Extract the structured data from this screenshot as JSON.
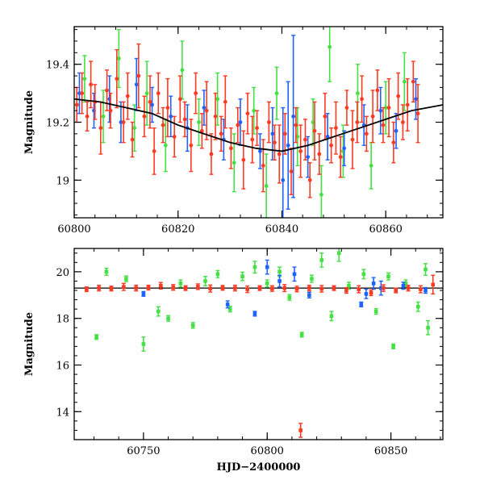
{
  "chart_data": [
    {
      "type": "scatter",
      "panel": "top",
      "title": "",
      "xlabel": "",
      "ylabel": "Magnitude",
      "xlim": [
        60800,
        60871
      ],
      "ylim": [
        19.53,
        18.87
      ],
      "y_inverted": true,
      "x_ticks": [
        60800,
        60820,
        60840,
        60860
      ],
      "x_tick_labels": [
        "60800",
        "60820",
        "60840",
        "60860"
      ],
      "y_ticks": [
        19.0,
        19.2,
        19.4
      ],
      "y_tick_labels": [
        "19",
        "19.2",
        "19.4"
      ],
      "model_curve": {
        "color": "#000000",
        "x": [
          60800,
          60805,
          60810,
          60815,
          60820,
          60825,
          60830,
          60835,
          60840,
          60845,
          60850,
          60855,
          60860,
          60865,
          60871
        ],
        "y": [
          19.28,
          19.27,
          19.25,
          19.23,
          19.19,
          19.16,
          19.13,
          19.11,
          19.1,
          19.12,
          19.15,
          19.18,
          19.21,
          19.24,
          19.26
        ]
      },
      "series": [
        {
          "color": "#ff3a22",
          "x": [
            60800.5,
            60801.5,
            60802.5,
            60803.2,
            60804.0,
            60805.1,
            60806.3,
            60807.0,
            60808.2,
            60809.5,
            60810.3,
            60811.2,
            60812.4,
            60813.5,
            60814.6,
            60815.4,
            60816.2,
            60817.1,
            60818.0,
            60819.3,
            60820.4,
            60821.3,
            60822.5,
            60823.4,
            60824.6,
            60825.5,
            60826.4,
            60827.2,
            60828.3,
            60829.1,
            60830.2,
            60831.5,
            60832.6,
            60833.4,
            60834.3,
            60835.2,
            60836.4,
            60837.5,
            60838.6,
            60839.5,
            60840.6,
            60841.8,
            60842.7,
            60843.6,
            60844.5,
            60845.4,
            60846.3,
            60847.2,
            60848.3,
            60849.5,
            60850.4,
            60851.3,
            60852.5,
            60853.6,
            60854.5,
            60855.4,
            60856.3,
            60857.5,
            60858.4,
            60859.5,
            60860.6,
            60861.5,
            60862.4,
            60863.3,
            60864.2,
            60865.3,
            60866.2
          ],
          "y": [
            19.26,
            19.3,
            19.22,
            19.33,
            19.27,
            19.18,
            19.31,
            19.24,
            19.35,
            19.2,
            19.29,
            19.14,
            19.36,
            19.22,
            19.27,
            19.1,
            19.3,
            19.19,
            19.25,
            19.15,
            19.28,
            19.21,
            19.12,
            19.3,
            19.17,
            19.24,
            19.09,
            19.22,
            19.16,
            19.27,
            19.11,
            19.19,
            19.07,
            19.23,
            19.14,
            19.18,
            19.05,
            19.2,
            19.13,
            19.09,
            19.16,
            19.03,
            19.19,
            19.1,
            19.14,
            19.0,
            19.17,
            19.09,
            19.22,
            19.12,
            19.18,
            19.08,
            19.25,
            19.14,
            19.2,
            19.28,
            19.16,
            19.22,
            19.31,
            19.19,
            19.25,
            19.13,
            19.29,
            19.2,
            19.26,
            19.34,
            19.23
          ],
          "err": [
            0.06,
            0.07,
            0.05,
            0.08,
            0.06,
            0.09,
            0.07,
            0.06,
            0.1,
            0.07,
            0.08,
            0.06,
            0.11,
            0.07,
            0.09,
            0.08,
            0.07,
            0.06,
            0.1,
            0.07,
            0.08,
            0.06,
            0.09,
            0.07,
            0.06,
            0.1,
            0.07,
            0.08,
            0.06,
            0.09,
            0.07,
            0.06,
            0.1,
            0.07,
            0.08,
            0.06,
            0.09,
            0.07,
            0.06,
            0.1,
            0.07,
            0.08,
            0.06,
            0.09,
            0.07,
            0.06,
            0.1,
            0.07,
            0.08,
            0.06,
            0.09,
            0.07,
            0.06,
            0.1,
            0.07,
            0.08,
            0.06,
            0.09,
            0.07,
            0.06,
            0.1,
            0.07,
            0.08,
            0.06,
            0.09,
            0.07,
            0.1
          ]
        },
        {
          "color": "#1e63ff",
          "x": [
            60801.0,
            60803.8,
            60806.8,
            60809.0,
            60812.0,
            60815.0,
            60818.6,
            60821.8,
            60825.0,
            60828.8,
            60832.0,
            60835.8,
            60838.2,
            60840.2,
            60841.2,
            60842.2,
            60845.0,
            60848.8,
            60852.0,
            60855.8,
            60859.0,
            60862.0,
            60865.8
          ],
          "y": [
            19.3,
            19.24,
            19.28,
            19.2,
            19.33,
            19.26,
            19.22,
            19.18,
            19.25,
            19.14,
            19.2,
            19.1,
            19.16,
            19.0,
            19.12,
            19.22,
            19.08,
            19.15,
            19.11,
            19.19,
            19.24,
            19.17,
            19.28
          ],
          "err": [
            0.07,
            0.06,
            0.08,
            0.07,
            0.09,
            0.06,
            0.07,
            0.08,
            0.06,
            0.07,
            0.08,
            0.06,
            0.09,
            0.25,
            0.22,
            0.28,
            0.07,
            0.08,
            0.06,
            0.07,
            0.08,
            0.06,
            0.07
          ]
        },
        {
          "color": "#44e044",
          "x": [
            60802.0,
            60805.6,
            60808.6,
            60811.6,
            60814.0,
            60817.6,
            60820.8,
            60824.0,
            60827.6,
            60830.8,
            60834.6,
            60837.0,
            60839.0,
            60843.0,
            60846.0,
            60847.6,
            60849.2,
            60851.8,
            60854.6,
            60857.2,
            60860.0,
            60863.6
          ],
          "y": [
            19.35,
            19.22,
            19.42,
            19.18,
            19.3,
            19.12,
            19.38,
            19.2,
            19.28,
            19.06,
            19.24,
            18.98,
            19.3,
            19.15,
            19.2,
            18.95,
            19.46,
            19.1,
            19.3,
            19.05,
            19.25,
            19.34
          ],
          "err": [
            0.08,
            0.09,
            0.1,
            0.08,
            0.11,
            0.09,
            0.1,
            0.08,
            0.09,
            0.1,
            0.08,
            0.11,
            0.09,
            0.1,
            0.08,
            0.1,
            0.12,
            0.09,
            0.1,
            0.08,
            0.09,
            0.1
          ]
        }
      ]
    },
    {
      "type": "scatter",
      "panel": "bottom",
      "title": "",
      "xlabel": "HJD−2400000",
      "ylabel": "Magnitude",
      "xlim": [
        60722,
        60871
      ],
      "ylim": [
        21.0,
        12.8
      ],
      "y_inverted": true,
      "x_ticks": [
        60750,
        60800,
        60850
      ],
      "x_tick_labels": [
        "60750",
        "60800",
        "60850"
      ],
      "y_ticks": [
        14,
        16,
        18,
        20
      ],
      "y_tick_labels": [
        "14",
        "16",
        "18",
        "20"
      ],
      "reference_line": {
        "y": 19.3,
        "color": "#000000"
      },
      "series": [
        {
          "color": "#ff3a22",
          "x": [
            60727,
            60732,
            60737,
            60742,
            60747,
            60752,
            60757,
            60762,
            60767,
            60772,
            60777,
            60782,
            60787,
            60792,
            60797,
            60802,
            60807,
            60812,
            60813.5,
            60817,
            60822,
            60827,
            60832,
            60837,
            60842,
            60847,
            60852,
            60857,
            60862,
            60867
          ],
          "y": [
            19.25,
            19.3,
            19.28,
            19.35,
            19.3,
            19.32,
            19.4,
            19.33,
            19.3,
            19.36,
            19.28,
            19.31,
            19.3,
            19.25,
            19.3,
            19.28,
            19.3,
            19.26,
            13.2,
            19.3,
            19.27,
            19.3,
            19.2,
            19.25,
            19.1,
            19.3,
            19.2,
            19.3,
            19.25,
            19.45
          ],
          "err": [
            0.1,
            0.12,
            0.1,
            0.15,
            0.12,
            0.1,
            0.14,
            0.12,
            0.1,
            0.12,
            0.15,
            0.1,
            0.12,
            0.14,
            0.1,
            0.12,
            0.15,
            0.12,
            0.3,
            0.12,
            0.14,
            0.1,
            0.12,
            0.15,
            0.12,
            0.14,
            0.1,
            0.12,
            0.15,
            0.4
          ]
        },
        {
          "color": "#1e63ff",
          "x": [
            60750,
            60784,
            60795,
            60800,
            60805,
            60811,
            60817,
            60838,
            60840,
            60843,
            60846,
            60855,
            60864
          ],
          "y": [
            19.05,
            18.6,
            18.2,
            20.2,
            19.6,
            19.9,
            19.0,
            18.6,
            19.05,
            19.5,
            19.3,
            19.4,
            19.2
          ],
          "err": [
            0.1,
            0.15,
            0.1,
            0.3,
            0.25,
            0.3,
            0.12,
            0.1,
            0.2,
            0.25,
            0.3,
            0.15,
            0.12
          ]
        },
        {
          "color": "#44e044",
          "x": [
            60731,
            60735,
            60743,
            60750,
            60756,
            60760,
            60765,
            60770,
            60775,
            60780,
            60785,
            60790,
            60795,
            60800,
            60805,
            60809,
            60814,
            60818,
            60822,
            60826,
            60829,
            60833,
            60839,
            60844,
            60849,
            60851,
            60856,
            60861,
            60864,
            60865
          ],
          "y": [
            17.2,
            20.0,
            19.7,
            16.9,
            18.3,
            18.0,
            19.5,
            17.7,
            19.6,
            19.9,
            18.4,
            19.8,
            20.2,
            19.5,
            20.0,
            18.9,
            17.3,
            19.7,
            20.5,
            18.1,
            20.8,
            19.4,
            19.9,
            18.3,
            19.8,
            16.8,
            19.5,
            18.5,
            20.1,
            17.6
          ],
          "err": [
            0.1,
            0.15,
            0.12,
            0.3,
            0.2,
            0.12,
            0.15,
            0.12,
            0.2,
            0.15,
            0.12,
            0.18,
            0.25,
            0.15,
            0.2,
            0.12,
            0.1,
            0.15,
            0.3,
            0.2,
            0.35,
            0.15,
            0.2,
            0.12,
            0.15,
            0.1,
            0.15,
            0.2,
            0.25,
            0.3
          ]
        }
      ]
    }
  ]
}
